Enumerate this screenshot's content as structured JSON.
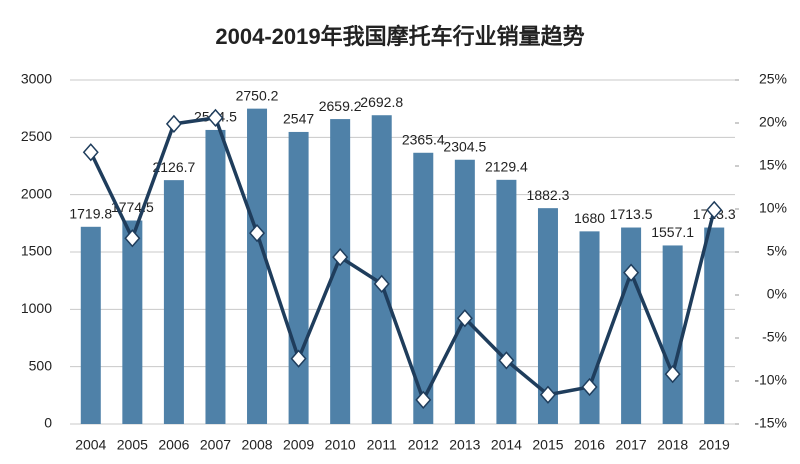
{
  "chart_data": {
    "type": "combo",
    "title": "2004-2019年我国摩托车行业销量趋势",
    "categories": [
      "2004",
      "2005",
      "2006",
      "2007",
      "2008",
      "2009",
      "2010",
      "2011",
      "2012",
      "2013",
      "2014",
      "2015",
      "2016",
      "2017",
      "2018",
      "2019"
    ],
    "series": [
      {
        "type": "bar",
        "color": "#4f81a8",
        "values": [
          1719.8,
          1774.5,
          2126.7,
          2564.5,
          2750.2,
          2547,
          2659.2,
          2692.8,
          2365.4,
          2304.5,
          2129.4,
          1882.3,
          1680,
          1713.5,
          1557.1,
          1713.3
        ]
      },
      {
        "type": "line",
        "axis": "y2",
        "color": "#1f3d5c",
        "values": [
          16.6,
          6.6,
          19.9,
          20.6,
          7.2,
          -7.4,
          4.4,
          1.3,
          -12.2,
          -2.7,
          -7.6,
          -11.6,
          -10.7,
          2.6,
          -9.2,
          9.9
        ]
      }
    ],
    "ylim": [
      0,
      3000
    ],
    "yticks": [
      0,
      500,
      1000,
      1500,
      2000,
      2500,
      3000
    ],
    "y2lim": [
      -15,
      25
    ],
    "y2ticks": [
      {
        "value": -15,
        "label": "-15%"
      },
      {
        "value": -10,
        "label": "-10%"
      },
      {
        "value": -5,
        "label": "-5%"
      },
      {
        "value": 0,
        "label": "0%"
      },
      {
        "value": 5,
        "label": "5%"
      },
      {
        "value": 10,
        "label": "10%"
      },
      {
        "value": 15,
        "label": "15%"
      },
      {
        "value": 20,
        "label": "20%"
      },
      {
        "value": 25,
        "label": "25%"
      }
    ],
    "grid": true
  }
}
